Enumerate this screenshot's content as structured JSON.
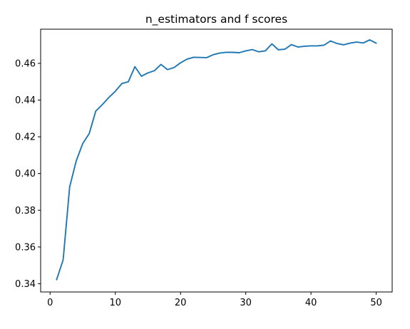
{
  "chart_data": {
    "type": "line",
    "title": "n_estimators and f scores",
    "xlabel": "",
    "ylabel": "",
    "xlim": [
      -1.45,
      52.45
    ],
    "ylim": [
      0.3355,
      0.4786
    ],
    "x_ticks": [
      0,
      10,
      20,
      30,
      40,
      50
    ],
    "y_ticks": [
      0.34,
      0.36,
      0.38,
      0.4,
      0.42,
      0.44,
      0.46
    ],
    "x_tick_labels": [
      "0",
      "10",
      "20",
      "30",
      "40",
      "50"
    ],
    "y_tick_labels": [
      "0.34",
      "0.36",
      "0.38",
      "0.40",
      "0.42",
      "0.44",
      "0.46"
    ],
    "grid": false,
    "legend": "none",
    "series": [
      {
        "color": "#1f77b4",
        "x": [
          1,
          2,
          3,
          4,
          5,
          6,
          7,
          8,
          9,
          10,
          11,
          12,
          13,
          14,
          15,
          16,
          17,
          18,
          19,
          20,
          21,
          22,
          23,
          24,
          25,
          26,
          27,
          28,
          29,
          30,
          31,
          32,
          33,
          34,
          35,
          36,
          37,
          38,
          39,
          40,
          41,
          42,
          43,
          44,
          45,
          46,
          47,
          48,
          49,
          50
        ],
        "values": [
          0.3422,
          0.353,
          0.3927,
          0.4068,
          0.4163,
          0.4218,
          0.434,
          0.4375,
          0.4414,
          0.4448,
          0.449,
          0.45,
          0.4582,
          0.453,
          0.4548,
          0.456,
          0.4594,
          0.4566,
          0.4577,
          0.4603,
          0.4623,
          0.4633,
          0.4632,
          0.4631,
          0.4647,
          0.4656,
          0.466,
          0.466,
          0.4658,
          0.4668,
          0.4675,
          0.4663,
          0.4668,
          0.4706,
          0.4674,
          0.4677,
          0.4702,
          0.4689,
          0.4693,
          0.4695,
          0.4695,
          0.4699,
          0.4722,
          0.4708,
          0.4701,
          0.471,
          0.4716,
          0.4711,
          0.4728,
          0.471
        ]
      }
    ]
  }
}
